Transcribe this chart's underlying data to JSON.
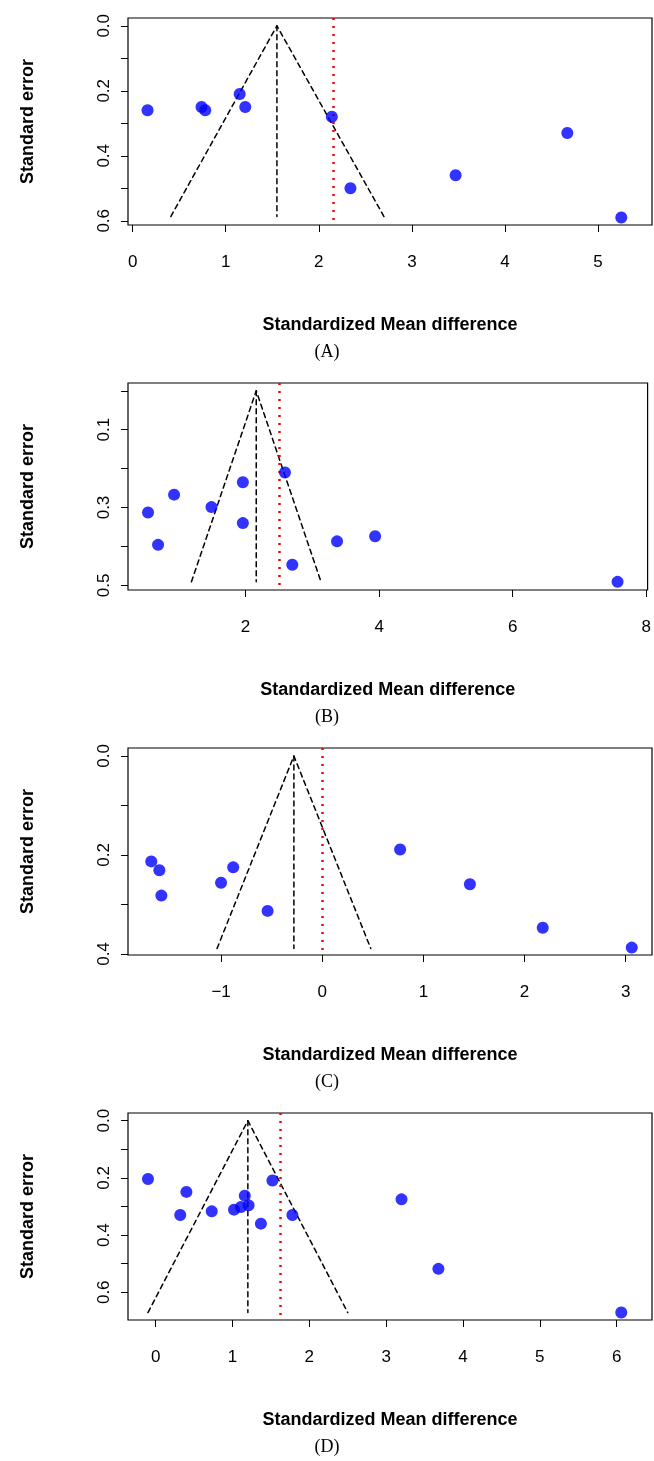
{
  "chart_data": [
    {
      "type": "scatter",
      "title": "(A)",
      "xlabel": "Standardized Mean difference",
      "ylabel": "Standard error",
      "xlim": [
        -0.05,
        5.58
      ],
      "ylim": [
        0.613,
        -0.024
      ],
      "xticks": [
        0,
        1,
        2,
        3,
        4,
        5
      ],
      "yticks": [
        {
          "value": 0,
          "label": "0.0"
        },
        {
          "value": 0.1,
          "label": null
        },
        0.2,
        {
          "value": 0.3,
          "label": null
        },
        0.4,
        {
          "value": 0.5,
          "label": null
        },
        0.6
      ],
      "grid": false,
      "marker": "circle",
      "ref_lines": [
        {
          "axis": "x",
          "value": 2.15,
          "color": "#ff0000",
          "line_style": "dotted"
        }
      ],
      "series": [
        {
          "color": "#0000ff",
          "x": [
            0.16,
            0.74,
            0.78,
            1.15,
            1.21,
            2.14,
            2.34,
            3.47,
            4.67,
            5.25
          ],
          "values": [
            0.26,
            0.25,
            0.26,
            0.21,
            0.25,
            0.28,
            0.5,
            0.46,
            0.33,
            0.59
          ]
        },
        {
          "type": "line",
          "color": "#000000",
          "line_style": "dashed",
          "marker": "none",
          "x": [
            0.41,
            1.55,
            2.7
          ],
          "values": [
            0.587,
            0,
            0.587
          ]
        },
        {
          "type": "line",
          "color": "#000000",
          "line_style": "dashed",
          "marker": "none",
          "x": [
            1.55,
            1.55
          ],
          "values": [
            0,
            0.587
          ]
        }
      ]
    },
    {
      "type": "scatter",
      "title": "(B)",
      "xlabel": "Standardized Mean difference",
      "ylabel": "Standard error",
      "xlim": [
        0.24,
        8.02
      ],
      "ylim": [
        0.512,
        -0.02
      ],
      "xticks": [
        2,
        4,
        6,
        8
      ],
      "yticks": [
        {
          "value": 0,
          "label": null
        },
        0.1,
        {
          "value": 0.2,
          "label": null
        },
        0.3,
        {
          "value": 0.4,
          "label": null
        },
        0.5
      ],
      "grid": false,
      "marker": "circle",
      "ref_lines": [
        {
          "axis": "x",
          "value": 2.5,
          "color": "#ff0000",
          "line_style": "dotted"
        }
      ],
      "series": [
        {
          "color": "#0000ff",
          "x": [
            0.54,
            0.69,
            0.93,
            1.49,
            1.96,
            1.96,
            2.59,
            2.7,
            3.37,
            3.94,
            7.57
          ],
          "values": [
            0.313,
            0.396,
            0.267,
            0.299,
            0.235,
            0.34,
            0.21,
            0.447,
            0.387,
            0.374,
            0.491
          ]
        },
        {
          "type": "line",
          "color": "#000000",
          "line_style": "dashed",
          "marker": "none",
          "x": [
            1.19,
            2.16,
            3.13
          ],
          "values": [
            0.491,
            0,
            0.491
          ]
        },
        {
          "type": "line",
          "color": "#000000",
          "line_style": "dashed",
          "marker": "none",
          "x": [
            2.16,
            2.16
          ],
          "values": [
            0,
            0.491
          ]
        }
      ]
    },
    {
      "type": "scatter",
      "title": "(C)",
      "xlabel": "Standardized Mean difference",
      "ylabel": "Standard error",
      "xlim": [
        -1.92,
        3.26
      ],
      "ylim": [
        0.402,
        -0.016
      ],
      "xticks": [
        {
          "value": -1,
          "label": "−1"
        },
        0,
        1,
        2,
        3
      ],
      "yticks": [
        {
          "value": 0,
          "label": "0.0"
        },
        {
          "value": 0.1,
          "label": null
        },
        0.2,
        {
          "value": 0.3,
          "label": null
        },
        0.4
      ],
      "grid": false,
      "marker": "circle",
      "ref_lines": [
        {
          "axis": "x",
          "value": 0,
          "color": "#ff0000",
          "line_style": "dotted"
        }
      ],
      "series": [
        {
          "color": "#0000ff",
          "x": [
            -1.69,
            -1.61,
            -1.59,
            -1.0,
            -0.88,
            -0.54,
            0.77,
            1.46,
            2.18,
            3.06
          ],
          "values": [
            0.213,
            0.231,
            0.282,
            0.256,
            0.225,
            0.313,
            0.189,
            0.259,
            0.347,
            0.387
          ]
        },
        {
          "type": "line",
          "color": "#000000",
          "line_style": "dashed",
          "marker": "none",
          "x": [
            -1.04,
            -0.28,
            0.48
          ],
          "values": [
            0.389,
            0,
            0.389
          ]
        },
        {
          "type": "line",
          "color": "#000000",
          "line_style": "dashed",
          "marker": "none",
          "x": [
            -0.28,
            -0.28
          ],
          "values": [
            0,
            0.389
          ]
        }
      ]
    },
    {
      "type": "scatter",
      "title": "(D)",
      "xlabel": "Standardized Mean difference",
      "ylabel": "Standard error",
      "xlim": [
        -0.36,
        6.46
      ],
      "ylim": [
        0.697,
        -0.027
      ],
      "xticks": [
        0,
        1,
        2,
        3,
        4,
        5,
        6
      ],
      "yticks": [
        {
          "value": 0,
          "label": "0.0"
        },
        {
          "value": 0.1,
          "label": null
        },
        0.2,
        {
          "value": 0.3,
          "label": null
        },
        0.4,
        {
          "value": 0.5,
          "label": null
        },
        0.6
      ],
      "grid": false,
      "marker": "circle",
      "ref_lines": [
        {
          "axis": "x",
          "value": 1.62,
          "color": "#ff0000",
          "line_style": "dotted"
        }
      ],
      "series": [
        {
          "color": "#0000ff",
          "x": [
            -0.1,
            0.4,
            0.32,
            0.73,
            1.02,
            1.11,
            1.16,
            1.21,
            1.37,
            1.52,
            1.78,
            3.2,
            3.68,
            6.06
          ],
          "values": [
            0.204,
            0.249,
            0.33,
            0.317,
            0.311,
            0.302,
            0.262,
            0.296,
            0.36,
            0.209,
            0.33,
            0.275,
            0.518,
            0.671
          ]
        },
        {
          "type": "line",
          "color": "#000000",
          "line_style": "dashed",
          "marker": "none",
          "x": [
            -0.1,
            1.2,
            2.5
          ],
          "values": [
            0.671,
            0,
            0.671
          ]
        },
        {
          "type": "line",
          "color": "#000000",
          "line_style": "dashed",
          "marker": "none",
          "x": [
            1.2,
            1.2
          ],
          "values": [
            0,
            0.671
          ]
        }
      ]
    }
  ]
}
